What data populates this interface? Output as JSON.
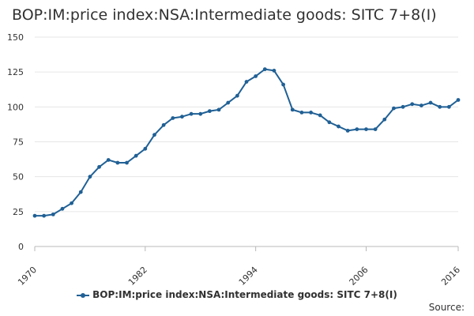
{
  "chart_data": {
    "type": "line",
    "title": "BOP:IM:price index:NSA:Intermediate goods: SITC 7+8(I)",
    "xlabel": "",
    "ylabel": "",
    "xlim": [
      1970,
      2016
    ],
    "ylim": [
      0,
      150
    ],
    "yticks": [
      0,
      25,
      50,
      75,
      100,
      125,
      150
    ],
    "xticks": [
      "1970",
      "1982",
      "1994",
      "2006",
      "2016"
    ],
    "grid": true,
    "legend_position": "bottom",
    "series": [
      {
        "name": "BOP:IM:price index:NSA:Intermediate goods: SITC 7+8(I)",
        "color": "#206095",
        "x": [
          1970,
          1971,
          1972,
          1973,
          1974,
          1975,
          1976,
          1977,
          1978,
          1979,
          1980,
          1981,
          1982,
          1983,
          1984,
          1985,
          1986,
          1987,
          1988,
          1989,
          1990,
          1991,
          1992,
          1993,
          1994,
          1995,
          1996,
          1997,
          1998,
          1999,
          2000,
          2001,
          2002,
          2003,
          2004,
          2005,
          2006,
          2007,
          2008,
          2009,
          2010,
          2011,
          2012,
          2013,
          2014,
          2015,
          2016
        ],
        "values": [
          22,
          22,
          23,
          27,
          31,
          39,
          50,
          57,
          62,
          60,
          60,
          65,
          70,
          80,
          87,
          92,
          93,
          95,
          95,
          97,
          98,
          103,
          108,
          118,
          122,
          127,
          126,
          116,
          98,
          96,
          96,
          94,
          89,
          86,
          83,
          84,
          84,
          84,
          91,
          99,
          100,
          102,
          101,
          103,
          100,
          100,
          105
        ]
      }
    ]
  },
  "legend": {
    "label": "BOP:IM:price index:NSA:Intermediate goods: SITC 7+8(I)"
  },
  "source_label": "Source:"
}
